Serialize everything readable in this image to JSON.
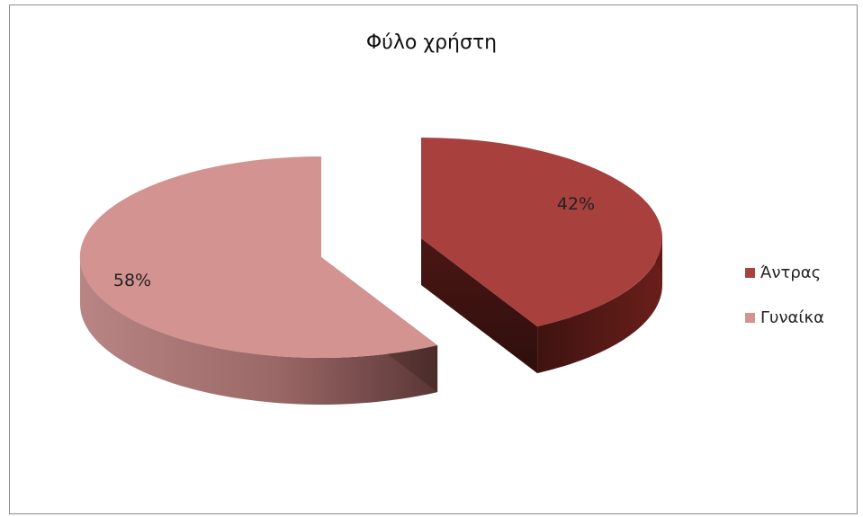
{
  "chart_data": {
    "type": "pie",
    "title": "Φύλο χρήστη",
    "categories": [
      "Άντρας",
      "Γυναίκα"
    ],
    "values": [
      42,
      58
    ],
    "labels": [
      "42%",
      "58%"
    ],
    "colors": [
      "#A8403E",
      "#D39391"
    ],
    "exploded": true,
    "three_d": true,
    "legend_position": "right"
  }
}
